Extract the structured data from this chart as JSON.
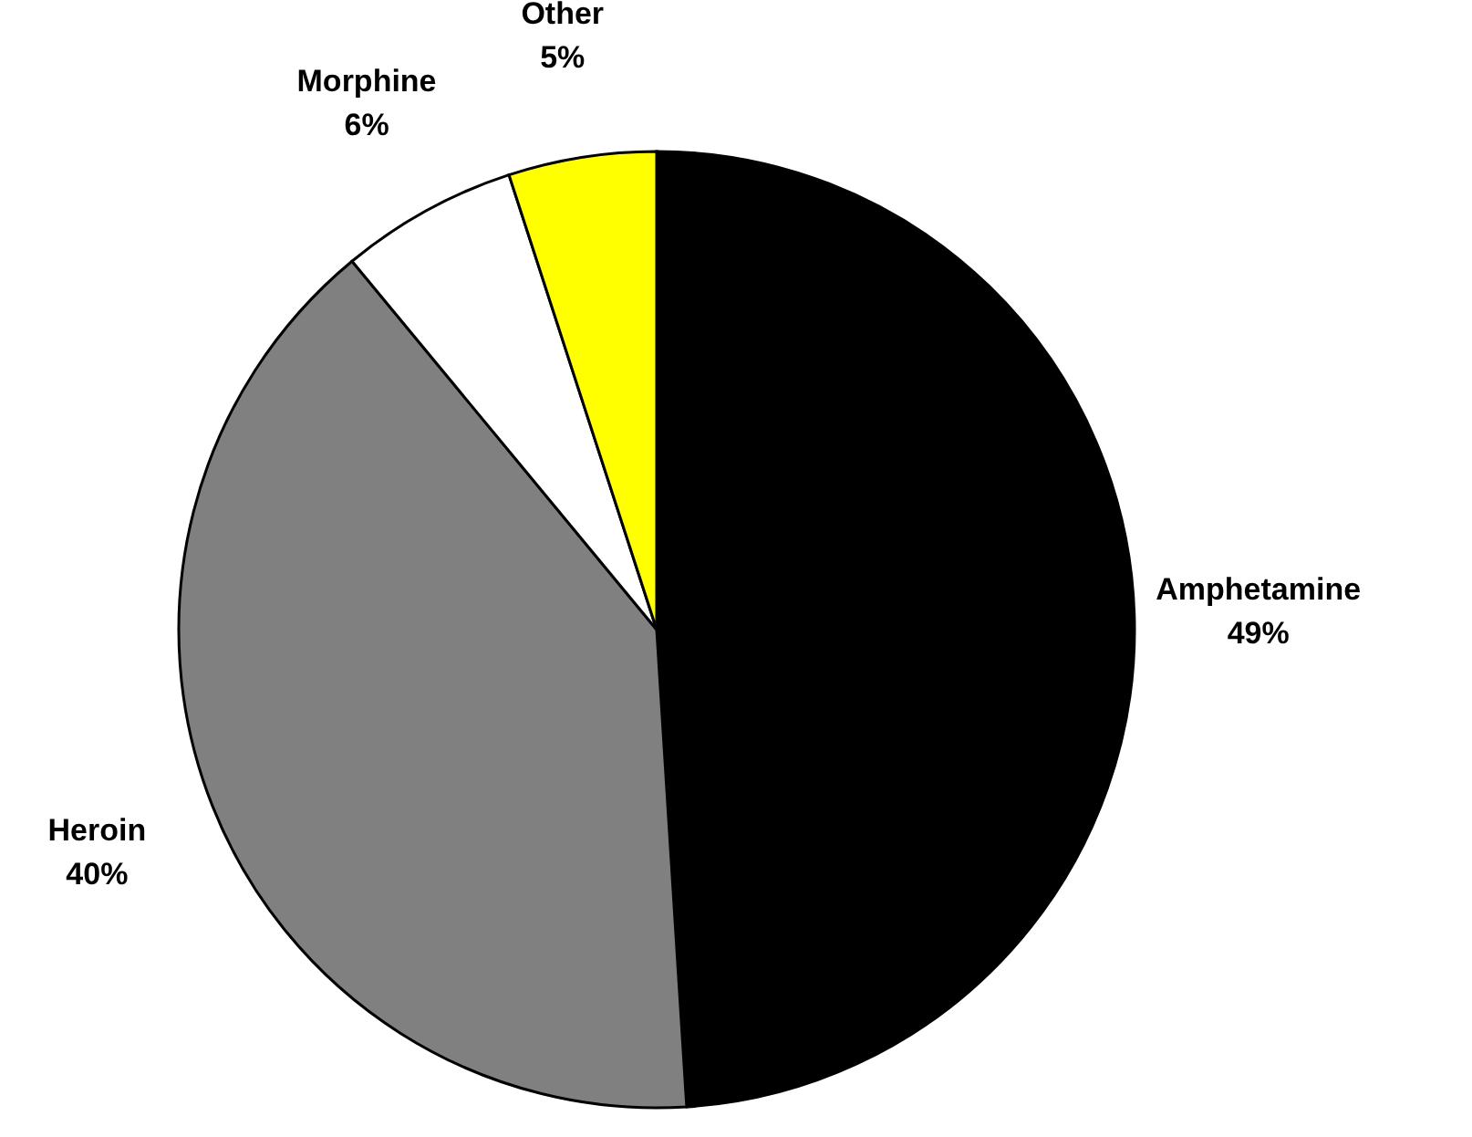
{
  "chart_data": {
    "type": "pie",
    "categories": [
      "Amphetamine",
      "Heroin",
      "Morphine",
      "Other"
    ],
    "values": [
      49,
      40,
      6,
      5
    ],
    "value_labels": [
      "49%",
      "40%",
      "6%",
      "5%"
    ],
    "colors": [
      "#000000",
      "#808080",
      "#ffffff",
      "#ffff00"
    ],
    "legend": false
  }
}
